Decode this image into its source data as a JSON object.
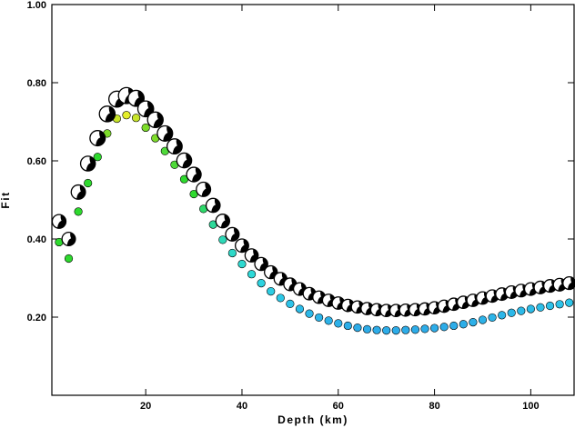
{
  "chart_data": {
    "type": "scatter",
    "xlabel": "Depth (km)",
    "ylabel": "Fit",
    "xlim": [
      0.5,
      109
    ],
    "ylim": [
      0.0,
      1.0
    ],
    "x_ticks": [
      20,
      40,
      60,
      80,
      100
    ],
    "y_ticks": [
      0.2,
      0.4,
      0.6,
      0.8,
      1.0
    ],
    "x_tick_labels": [
      "20",
      "40",
      "60",
      "80",
      "100"
    ],
    "y_tick_labels": [
      "0.20",
      "0.40",
      "0.60",
      "0.80",
      "1.00"
    ],
    "grid": false,
    "series": [
      {
        "marker": "focal-mechanism-beachball",
        "x": [
          2,
          4,
          6,
          8,
          10,
          12,
          14,
          16,
          18,
          20,
          22,
          24,
          26,
          28,
          30,
          32,
          34,
          36,
          38,
          40,
          42,
          44,
          46,
          48,
          50,
          52,
          54,
          56,
          58,
          60,
          62,
          64,
          66,
          68,
          70,
          72,
          74,
          76,
          78,
          80,
          82,
          84,
          86,
          88,
          90,
          92,
          94,
          96,
          98,
          100,
          102,
          104,
          106,
          108
        ],
        "y": [
          0.445,
          0.4,
          0.52,
          0.593,
          0.658,
          0.72,
          0.758,
          0.767,
          0.76,
          0.733,
          0.705,
          0.67,
          0.637,
          0.601,
          0.565,
          0.527,
          0.486,
          0.446,
          0.412,
          0.383,
          0.358,
          0.336,
          0.315,
          0.298,
          0.284,
          0.272,
          0.26,
          0.251,
          0.243,
          0.236,
          0.23,
          0.226,
          0.222,
          0.219,
          0.217,
          0.217,
          0.218,
          0.219,
          0.221,
          0.224,
          0.228,
          0.233,
          0.238,
          0.243,
          0.249,
          0.254,
          0.259,
          0.264,
          0.268,
          0.272,
          0.276,
          0.28,
          0.283,
          0.287
        ]
      },
      {
        "marker": "colored-circle",
        "x": [
          2,
          4,
          6,
          8,
          10,
          12,
          14,
          16,
          18,
          20,
          22,
          24,
          26,
          28,
          30,
          32,
          34,
          36,
          38,
          40,
          42,
          44,
          46,
          48,
          50,
          52,
          54,
          56,
          58,
          60,
          62,
          64,
          66,
          68,
          70,
          72,
          74,
          76,
          78,
          80,
          82,
          84,
          86,
          88,
          90,
          92,
          94,
          96,
          98,
          100,
          102,
          104,
          106,
          108
        ],
        "y": [
          0.392,
          0.35,
          0.47,
          0.543,
          0.61,
          0.67,
          0.708,
          0.717,
          0.71,
          0.685,
          0.658,
          0.625,
          0.59,
          0.553,
          0.515,
          0.477,
          0.437,
          0.398,
          0.364,
          0.336,
          0.31,
          0.287,
          0.266,
          0.249,
          0.234,
          0.221,
          0.209,
          0.199,
          0.191,
          0.184,
          0.178,
          0.173,
          0.169,
          0.167,
          0.166,
          0.166,
          0.167,
          0.168,
          0.17,
          0.172,
          0.175,
          0.178,
          0.182,
          0.187,
          0.193,
          0.199,
          0.205,
          0.211,
          0.216,
          0.221,
          0.225,
          0.229,
          0.233,
          0.237
        ],
        "colors": [
          "#2ed92e",
          "#2ed92e",
          "#2ed92e",
          "#2ed92e",
          "#2ed92e",
          "#7ddc2a",
          "#c8e52a",
          "#e4ee2a",
          "#c8e52a",
          "#7ddc2a",
          "#7ddc2a",
          "#4fd93a",
          "#4fd93a",
          "#2ed92e",
          "#2ed92e",
          "#2ed96a",
          "#2ed99a",
          "#2ed9b8",
          "#2ed9c8",
          "#2ed9d0",
          "#2ed9d8",
          "#2dd3e0",
          "#2dcde3",
          "#2dc8e6",
          "#2dc2e8",
          "#2dbce8",
          "#2db8e8",
          "#2db4e8",
          "#2db2e8",
          "#2db0e8",
          "#2daee8",
          "#2dace8",
          "#2dace8",
          "#2dace8",
          "#2dace8",
          "#2dace8",
          "#2dace8",
          "#2dace8",
          "#2dace8",
          "#2dace8",
          "#2dace8",
          "#2dace8",
          "#2daee8",
          "#2db0e8",
          "#2db2e8",
          "#2db4e8",
          "#2db6e8",
          "#2db8e8",
          "#2dbae8",
          "#2dbce8",
          "#2dbee8",
          "#2dc0e8",
          "#2dc2e8",
          "#2dc4e8"
        ]
      }
    ]
  }
}
